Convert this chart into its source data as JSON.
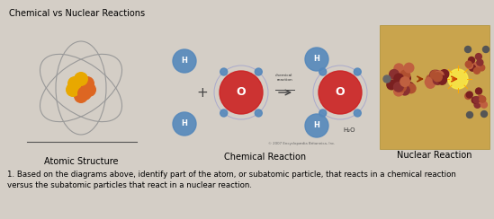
{
  "title": "Chemical vs Nuclear Reactions",
  "label_atomic": "Atomic Structure",
  "label_chemical": "Chemical Reaction",
  "label_nuclear": "Nuclear Reaction",
  "question": "1. Based on the diagrams above, identify part of the atom, or subatomic particle, that reacts in a chemical reaction\nversus the subatomic particles that react in a nuclear reaction.",
  "bg_color": "#d4cec6",
  "title_fontsize": 7,
  "label_fontsize": 7,
  "question_fontsize": 6.2,
  "nuclear_bg": "#c8a040",
  "nuclear_bg_alpha": 0.9
}
